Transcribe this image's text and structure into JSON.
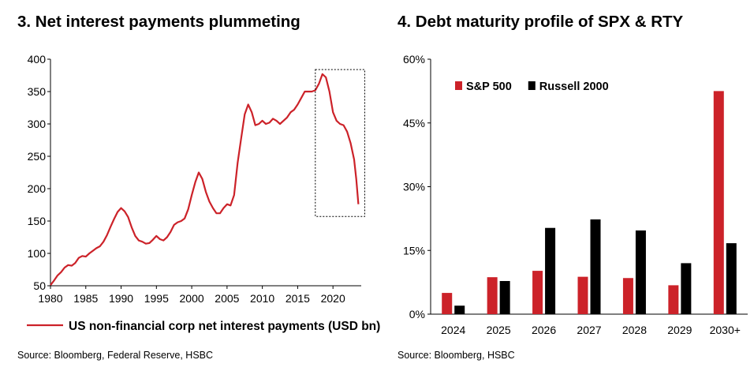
{
  "chart_data": [
    {
      "type": "line",
      "title": "3. Net interest payments plummeting",
      "source": "Source: Bloomberg, Federal Reserve, HSBC",
      "xlim": [
        1980,
        2024
      ],
      "ylim": [
        50,
        400
      ],
      "xticks": [
        "1980",
        "1985",
        "1990",
        "1995",
        "2000",
        "2005",
        "2010",
        "2015",
        "2020"
      ],
      "yticks": [
        "400",
        "350",
        "300",
        "250",
        "200",
        "150",
        "100",
        "50"
      ],
      "grid": false,
      "legend_position": "bottom",
      "colors": {
        "line": "#cc2229",
        "axis": "#000000",
        "highlight_box": "#000000"
      },
      "highlight_box": {
        "x": [
          2017.5,
          2024.5
        ],
        "y": [
          157,
          384
        ]
      },
      "series": [
        {
          "name": "US non-financial corp net interest payments (USD bn)",
          "x": [
            1980,
            1980.5,
            1981,
            1981.5,
            1982,
            1982.5,
            1983,
            1983.5,
            1984,
            1984.5,
            1985,
            1985.5,
            1986,
            1986.5,
            1987,
            1987.5,
            1988,
            1988.5,
            1989,
            1989.5,
            1990,
            1990.5,
            1991,
            1991.5,
            1992,
            1992.5,
            1993,
            1993.5,
            1994,
            1994.5,
            1995,
            1995.5,
            1996,
            1996.5,
            1997,
            1997.5,
            1998,
            1998.5,
            1999,
            1999.5,
            2000,
            2000.5,
            2001,
            2001.5,
            2002,
            2002.5,
            2003,
            2003.5,
            2004,
            2004.5,
            2005,
            2005.5,
            2006,
            2006.5,
            2007,
            2007.5,
            2008,
            2008.5,
            2009,
            2009.5,
            2010,
            2010.5,
            2011,
            2011.5,
            2012,
            2012.5,
            2013,
            2013.5,
            2014,
            2014.5,
            2015,
            2015.5,
            2016,
            2016.5,
            2017,
            2017.5,
            2018,
            2018.5,
            2019,
            2019.5,
            2020,
            2020.5,
            2021,
            2021.5,
            2022,
            2022.5,
            2023,
            2023.3,
            2023.6
          ],
          "values": [
            51,
            58,
            66,
            71,
            78,
            82,
            81,
            85,
            93,
            96,
            95,
            100,
            104,
            108,
            111,
            118,
            128,
            141,
            153,
            164,
            170,
            165,
            156,
            140,
            127,
            120,
            118,
            115,
            116,
            121,
            127,
            122,
            120,
            125,
            133,
            144,
            148,
            150,
            154,
            168,
            190,
            210,
            225,
            215,
            195,
            180,
            170,
            162,
            162,
            170,
            176,
            174,
            190,
            240,
            278,
            315,
            330,
            318,
            298,
            300,
            305,
            300,
            302,
            308,
            305,
            300,
            305,
            310,
            318,
            322,
            330,
            340,
            350,
            350,
            350,
            352,
            362,
            377,
            372,
            350,
            318,
            305,
            300,
            298,
            288,
            270,
            245,
            215,
            176
          ]
        }
      ]
    },
    {
      "type": "bar",
      "title": "4. Debt maturity profile of SPX & RTY",
      "source": "Source: Bloomberg, HSBC",
      "categories": [
        "2024",
        "2025",
        "2026",
        "2027",
        "2028",
        "2029",
        "2030+"
      ],
      "ylim": [
        0,
        60
      ],
      "yticks": [
        "60%",
        "45%",
        "30%",
        "15%",
        "0%"
      ],
      "grid": false,
      "legend_position": "top-left",
      "series": [
        {
          "name": "S&P 500",
          "color": "#cc2229",
          "values": [
            5,
            8.7,
            10.2,
            8.8,
            8.5,
            6.8,
            52.5
          ]
        },
        {
          "name": "Russell 2000",
          "color": "#000000",
          "values": [
            2,
            7.8,
            20.3,
            22.3,
            19.7,
            12,
            16.7
          ]
        }
      ]
    }
  ]
}
